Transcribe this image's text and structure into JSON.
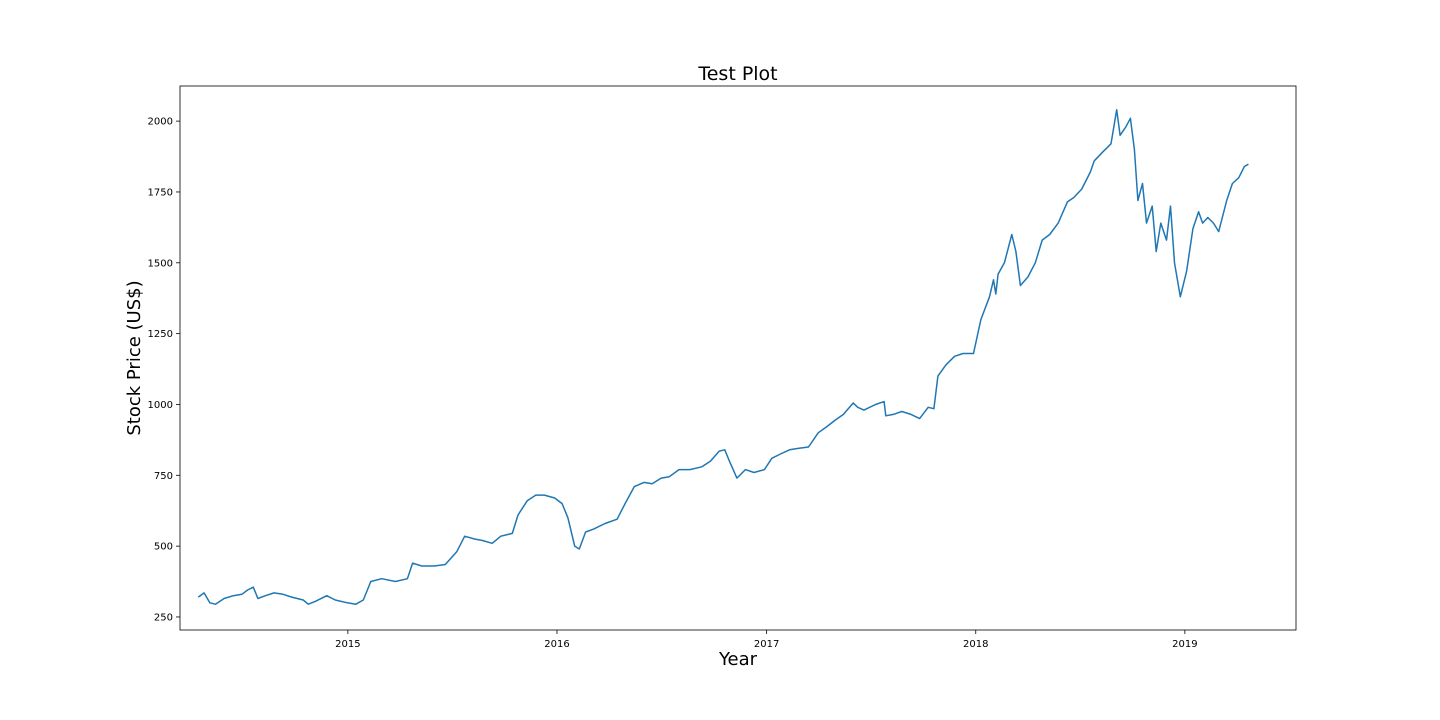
{
  "colors": {
    "series": "#1f77b4",
    "axes": "#000000",
    "background": "#ffffff"
  },
  "chart_data": {
    "type": "line",
    "title": "Test Plot",
    "xlabel": "Year",
    "ylabel": "Stock Price (US$)",
    "grid": false,
    "legend": "none",
    "x_ticks": [
      "2015",
      "2016",
      "2017",
      "2018",
      "2019"
    ],
    "y_ticks": [
      "250",
      "500",
      "750",
      "1000",
      "1250",
      "1500",
      "1750",
      "2000"
    ],
    "x_tick_values": [
      "2015-01-01",
      "2016-01-01",
      "2017-01-01",
      "2018-01-01",
      "2019-01-01"
    ],
    "y_tick_values": [
      250,
      500,
      750,
      1000,
      1250,
      1500,
      1750,
      2000
    ],
    "xlim": [
      "2014-03-14",
      "2019-07-14"
    ],
    "ylim": [
      204,
      2124
    ],
    "series": [
      {
        "x": [
          "2014-04-15",
          "2014-04-25",
          "2014-05-05",
          "2014-05-15",
          "2014-05-30",
          "2014-06-15",
          "2014-06-30",
          "2014-07-10",
          "2014-07-20",
          "2014-07-28",
          "2014-08-10",
          "2014-08-25",
          "2014-09-10",
          "2014-09-25",
          "2014-10-15",
          "2014-10-24",
          "2014-11-05",
          "2014-11-25",
          "2014-12-10",
          "2014-12-31",
          "2015-01-15",
          "2015-01-28",
          "2015-02-10",
          "2015-03-01",
          "2015-03-25",
          "2015-04-15",
          "2015-04-24",
          "2015-05-10",
          "2015-06-01",
          "2015-06-20",
          "2015-07-10",
          "2015-07-24",
          "2015-08-10",
          "2015-08-24",
          "2015-09-10",
          "2015-09-25",
          "2015-10-15",
          "2015-10-25",
          "2015-11-10",
          "2015-11-25",
          "2015-12-10",
          "2015-12-28",
          "2016-01-10",
          "2016-01-20",
          "2016-02-01",
          "2016-02-09",
          "2016-02-20",
          "2016-03-05",
          "2016-03-25",
          "2016-04-15",
          "2016-04-29",
          "2016-05-15",
          "2016-06-01",
          "2016-06-15",
          "2016-07-01",
          "2016-07-15",
          "2016-08-01",
          "2016-08-20",
          "2016-09-10",
          "2016-09-25",
          "2016-10-10",
          "2016-10-20",
          "2016-10-28",
          "2016-11-10",
          "2016-11-25",
          "2016-12-10",
          "2016-12-28",
          "2017-01-10",
          "2017-01-25",
          "2017-02-10",
          "2017-02-25",
          "2017-03-15",
          "2017-04-01",
          "2017-04-15",
          "2017-05-01",
          "2017-05-15",
          "2017-06-01",
          "2017-06-09",
          "2017-06-20",
          "2017-07-10",
          "2017-07-25",
          "2017-07-28",
          "2017-08-10",
          "2017-08-25",
          "2017-09-10",
          "2017-09-25",
          "2017-10-10",
          "2017-10-20",
          "2017-10-27",
          "2017-11-10",
          "2017-11-25",
          "2017-12-10",
          "2017-12-28",
          "2018-01-10",
          "2018-01-25",
          "2018-02-01",
          "2018-02-05",
          "2018-02-09",
          "2018-02-20",
          "2018-03-05",
          "2018-03-12",
          "2018-03-20",
          "2018-04-02",
          "2018-04-15",
          "2018-04-27",
          "2018-05-10",
          "2018-05-25",
          "2018-06-10",
          "2018-06-21",
          "2018-07-05",
          "2018-07-20",
          "2018-07-27",
          "2018-08-10",
          "2018-08-25",
          "2018-09-04",
          "2018-09-10",
          "2018-09-20",
          "2018-09-28",
          "2018-10-05",
          "2018-10-11",
          "2018-10-19",
          "2018-10-26",
          "2018-11-05",
          "2018-11-12",
          "2018-11-20",
          "2018-11-30",
          "2018-12-07",
          "2018-12-14",
          "2018-12-24",
          "2019-01-04",
          "2019-01-15",
          "2019-01-25",
          "2019-02-01",
          "2019-02-10",
          "2019-02-20",
          "2019-03-01",
          "2019-03-15",
          "2019-03-25",
          "2019-04-05",
          "2019-04-15",
          "2019-04-22"
        ],
        "y": [
          320,
          335,
          300,
          295,
          315,
          325,
          330,
          345,
          355,
          315,
          325,
          335,
          330,
          320,
          310,
          295,
          305,
          325,
          310,
          300,
          295,
          310,
          375,
          385,
          375,
          385,
          440,
          430,
          430,
          435,
          480,
          535,
          525,
          520,
          510,
          535,
          545,
          610,
          660,
          680,
          680,
          670,
          650,
          600,
          500,
          490,
          550,
          560,
          580,
          595,
          650,
          710,
          725,
          720,
          740,
          745,
          770,
          770,
          780,
          800,
          835,
          840,
          800,
          740,
          770,
          760,
          770,
          810,
          825,
          840,
          845,
          850,
          900,
          920,
          945,
          965,
          1005,
          990,
          980,
          1000,
          1010,
          960,
          965,
          975,
          965,
          950,
          990,
          985,
          1100,
          1140,
          1170,
          1180,
          1180,
          1300,
          1380,
          1440,
          1390,
          1460,
          1500,
          1600,
          1540,
          1420,
          1450,
          1500,
          1580,
          1600,
          1640,
          1715,
          1730,
          1760,
          1820,
          1860,
          1890,
          1920,
          2040,
          1950,
          1980,
          2010,
          1900,
          1720,
          1780,
          1640,
          1700,
          1540,
          1640,
          1580,
          1700,
          1500,
          1380,
          1470,
          1620,
          1680,
          1640,
          1660,
          1640,
          1610,
          1720,
          1780,
          1800,
          1840,
          1848
        ]
      }
    ]
  }
}
